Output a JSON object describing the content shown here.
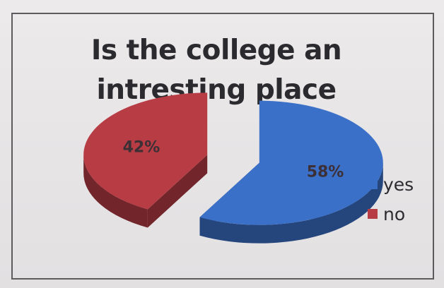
{
  "chart_data": {
    "type": "pie",
    "style": "3d-exploded",
    "title_lines": [
      "Is the college an",
      "intresting place"
    ],
    "slices": [
      {
        "name": "yes",
        "percent": 58,
        "label": "58%",
        "color": "#3b70c9"
      },
      {
        "name": "no",
        "percent": 42,
        "label": "42%",
        "color": "#b83c44"
      }
    ],
    "legend": {
      "position": "right",
      "entries": [
        "yes",
        "no"
      ]
    }
  }
}
